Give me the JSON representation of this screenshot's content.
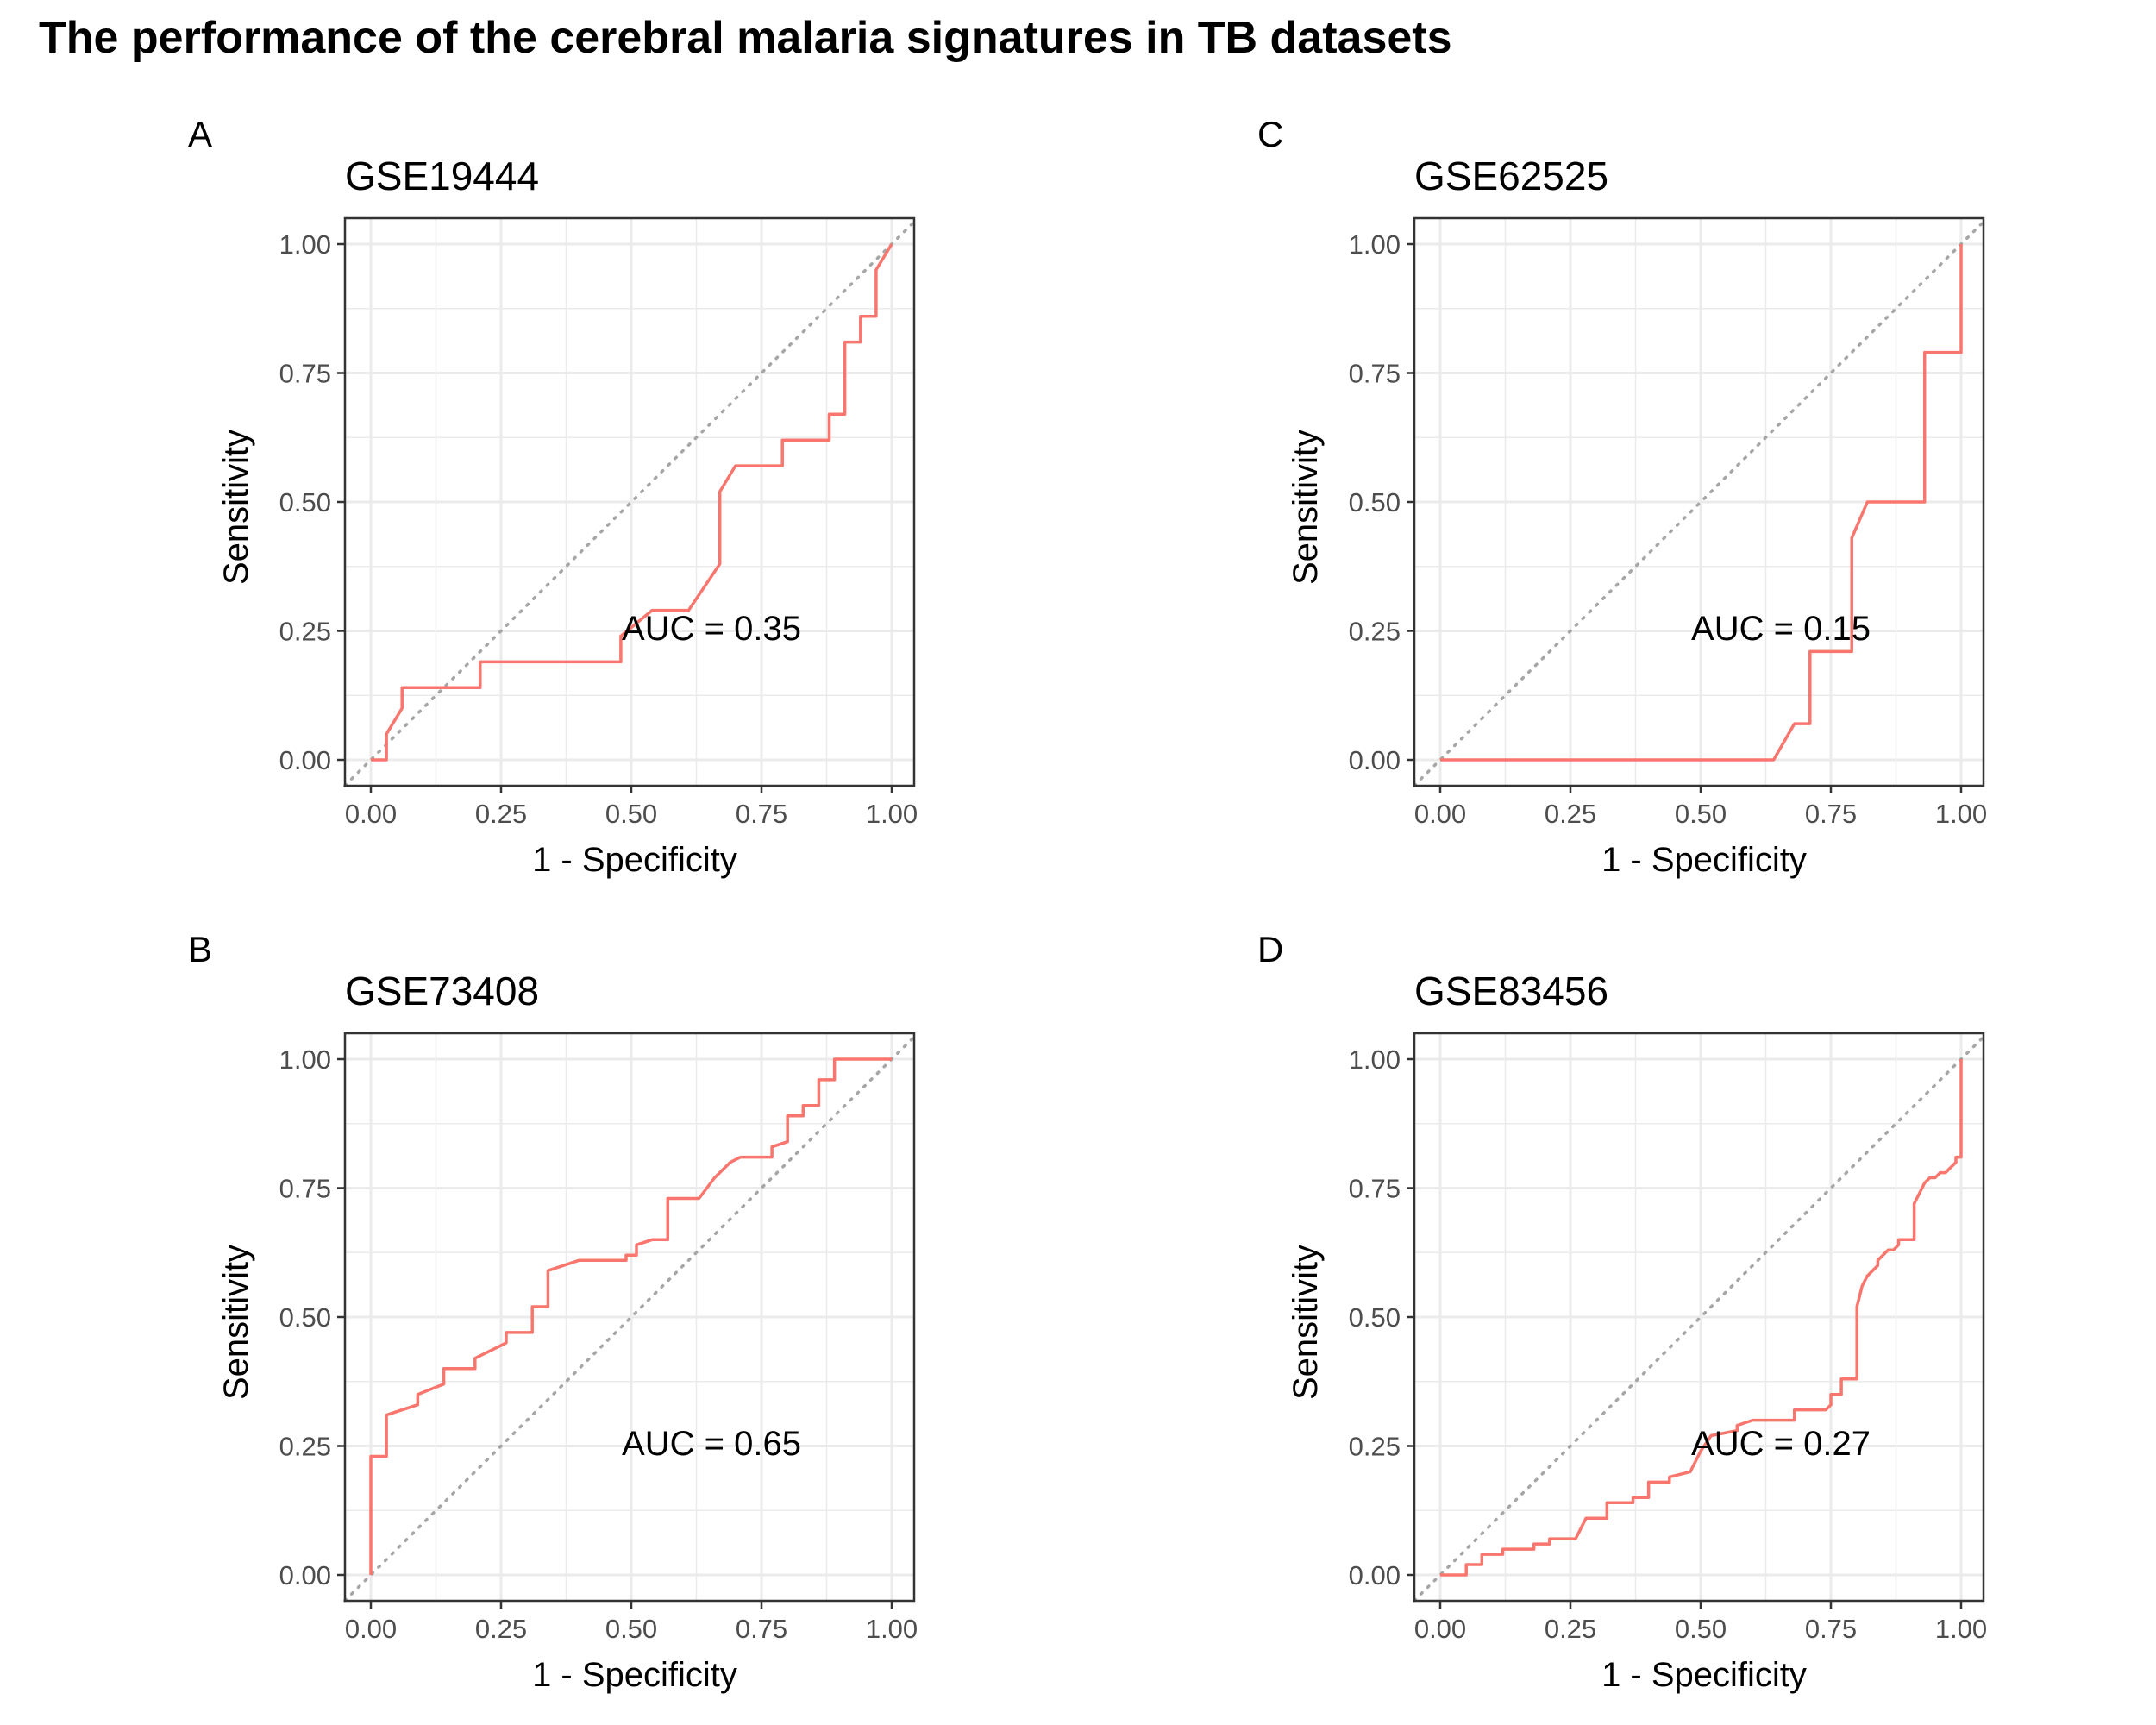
{
  "title": "The performance of the cerebral malaria signatures in TB datasets",
  "colors": {
    "roc_line": "#F8766D",
    "diagonal": "#A6A6A6",
    "grid": "#EBEBEB",
    "panel_border": "#333333"
  },
  "chart_data": [
    {
      "type": "line",
      "tag": "A",
      "title": "GSE19444",
      "xlabel": "1 - Specificity",
      "ylabel": "Sensitivity",
      "xlim": [
        0,
        1
      ],
      "ylim": [
        0,
        1
      ],
      "xticks": [
        "0.00",
        "0.25",
        "0.50",
        "0.75",
        "1.00"
      ],
      "yticks": [
        "0.00",
        "0.25",
        "0.50",
        "0.75",
        "1.00"
      ],
      "grid": true,
      "reference_line": "diagonal",
      "annotation": "AUC = 0.35",
      "series": [
        {
          "x": [
            0,
            0.03,
            0.03,
            0.06,
            0.06,
            0.21,
            0.21,
            0.48,
            0.48,
            0.54,
            0.61,
            0.67,
            0.67,
            0.7,
            0.79,
            0.79,
            0.88,
            0.88,
            0.91,
            0.91,
            0.94,
            0.94,
            0.97,
            0.97,
            1.0
          ],
          "y": [
            0,
            0,
            0.05,
            0.1,
            0.14,
            0.14,
            0.19,
            0.19,
            0.24,
            0.29,
            0.29,
            0.38,
            0.52,
            0.57,
            0.57,
            0.62,
            0.62,
            0.67,
            0.67,
            0.81,
            0.81,
            0.86,
            0.86,
            0.95,
            1.0
          ]
        }
      ]
    },
    {
      "type": "line",
      "tag": "C",
      "title": "GSE62525",
      "xlabel": "1 - Specificity",
      "ylabel": "Sensitivity",
      "xlim": [
        0,
        1
      ],
      "ylim": [
        0,
        1
      ],
      "xticks": [
        "0.00",
        "0.25",
        "0.50",
        "0.75",
        "1.00"
      ],
      "yticks": [
        "0.00",
        "0.25",
        "0.50",
        "0.75",
        "1.00"
      ],
      "grid": true,
      "reference_line": "diagonal",
      "annotation": "AUC = 0.15",
      "series": [
        {
          "x": [
            0,
            0.64,
            0.68,
            0.71,
            0.71,
            0.71,
            0.79,
            0.79,
            0.82,
            0.93,
            0.93,
            1.0,
            1.0
          ],
          "y": [
            0,
            0,
            0.07,
            0.07,
            0.14,
            0.21,
            0.21,
            0.43,
            0.5,
            0.5,
            0.79,
            0.79,
            1.0
          ]
        }
      ]
    },
    {
      "type": "line",
      "tag": "B",
      "title": "GSE73408",
      "xlabel": "1 - Specificity",
      "ylabel": "Sensitivity",
      "xlim": [
        0,
        1
      ],
      "ylim": [
        0,
        1
      ],
      "xticks": [
        "0.00",
        "0.25",
        "0.50",
        "0.75",
        "1.00"
      ],
      "yticks": [
        "0.00",
        "0.25",
        "0.50",
        "0.75",
        "1.00"
      ],
      "grid": true,
      "reference_line": "diagonal",
      "annotation": "AUC =  0.65",
      "series": [
        {
          "x": [
            0,
            0,
            0.03,
            0.03,
            0.09,
            0.09,
            0.14,
            0.14,
            0.2,
            0.2,
            0.26,
            0.26,
            0.31,
            0.31,
            0.34,
            0.34,
            0.4,
            0.49,
            0.49,
            0.51,
            0.51,
            0.54,
            0.57,
            0.57,
            0.63,
            0.66,
            0.69,
            0.71,
            0.77,
            0.77,
            0.8,
            0.8,
            0.83,
            0.83,
            0.86,
            0.86,
            0.89,
            0.89,
            1.0
          ],
          "y": [
            0,
            0.23,
            0.23,
            0.31,
            0.33,
            0.35,
            0.37,
            0.4,
            0.4,
            0.42,
            0.45,
            0.47,
            0.47,
            0.52,
            0.52,
            0.59,
            0.61,
            0.61,
            0.62,
            0.62,
            0.64,
            0.65,
            0.65,
            0.73,
            0.73,
            0.77,
            0.8,
            0.81,
            0.81,
            0.83,
            0.84,
            0.89,
            0.89,
            0.91,
            0.91,
            0.96,
            0.96,
            1.0,
            1.0
          ]
        }
      ]
    },
    {
      "type": "line",
      "tag": "D",
      "title": "GSE83456",
      "xlabel": "1 - Specificity",
      "ylabel": "Sensitivity",
      "xlim": [
        0,
        1
      ],
      "ylim": [
        0,
        1
      ],
      "xticks": [
        "0.00",
        "0.25",
        "0.50",
        "0.75",
        "1.00"
      ],
      "yticks": [
        "0.00",
        "0.25",
        "0.50",
        "0.75",
        "1.00"
      ],
      "grid": true,
      "reference_line": "diagonal",
      "annotation": "AUC = 0.27",
      "series": [
        {
          "x": [
            0,
            0.05,
            0.05,
            0.08,
            0.08,
            0.12,
            0.12,
            0.18,
            0.18,
            0.21,
            0.21,
            0.26,
            0.28,
            0.32,
            0.32,
            0.37,
            0.37,
            0.4,
            0.4,
            0.44,
            0.44,
            0.48,
            0.5,
            0.52,
            0.57,
            0.57,
            0.6,
            0.68,
            0.68,
            0.74,
            0.75,
            0.75,
            0.77,
            0.77,
            0.8,
            0.8,
            0.81,
            0.82,
            0.84,
            0.84,
            0.86,
            0.87,
            0.88,
            0.88,
            0.91,
            0.91,
            0.92,
            0.93,
            0.94,
            0.95,
            0.96,
            0.97,
            0.98,
            0.99,
            0.99,
            1.0,
            1.0
          ],
          "y": [
            0,
            0,
            0.02,
            0.02,
            0.04,
            0.04,
            0.05,
            0.05,
            0.06,
            0.06,
            0.07,
            0.07,
            0.11,
            0.11,
            0.14,
            0.14,
            0.15,
            0.15,
            0.18,
            0.18,
            0.19,
            0.2,
            0.24,
            0.27,
            0.28,
            0.29,
            0.3,
            0.3,
            0.32,
            0.32,
            0.33,
            0.35,
            0.35,
            0.38,
            0.38,
            0.52,
            0.56,
            0.58,
            0.6,
            0.61,
            0.63,
            0.63,
            0.64,
            0.65,
            0.65,
            0.72,
            0.74,
            0.76,
            0.77,
            0.77,
            0.78,
            0.78,
            0.79,
            0.8,
            0.81,
            0.81,
            1.0
          ]
        }
      ]
    }
  ]
}
